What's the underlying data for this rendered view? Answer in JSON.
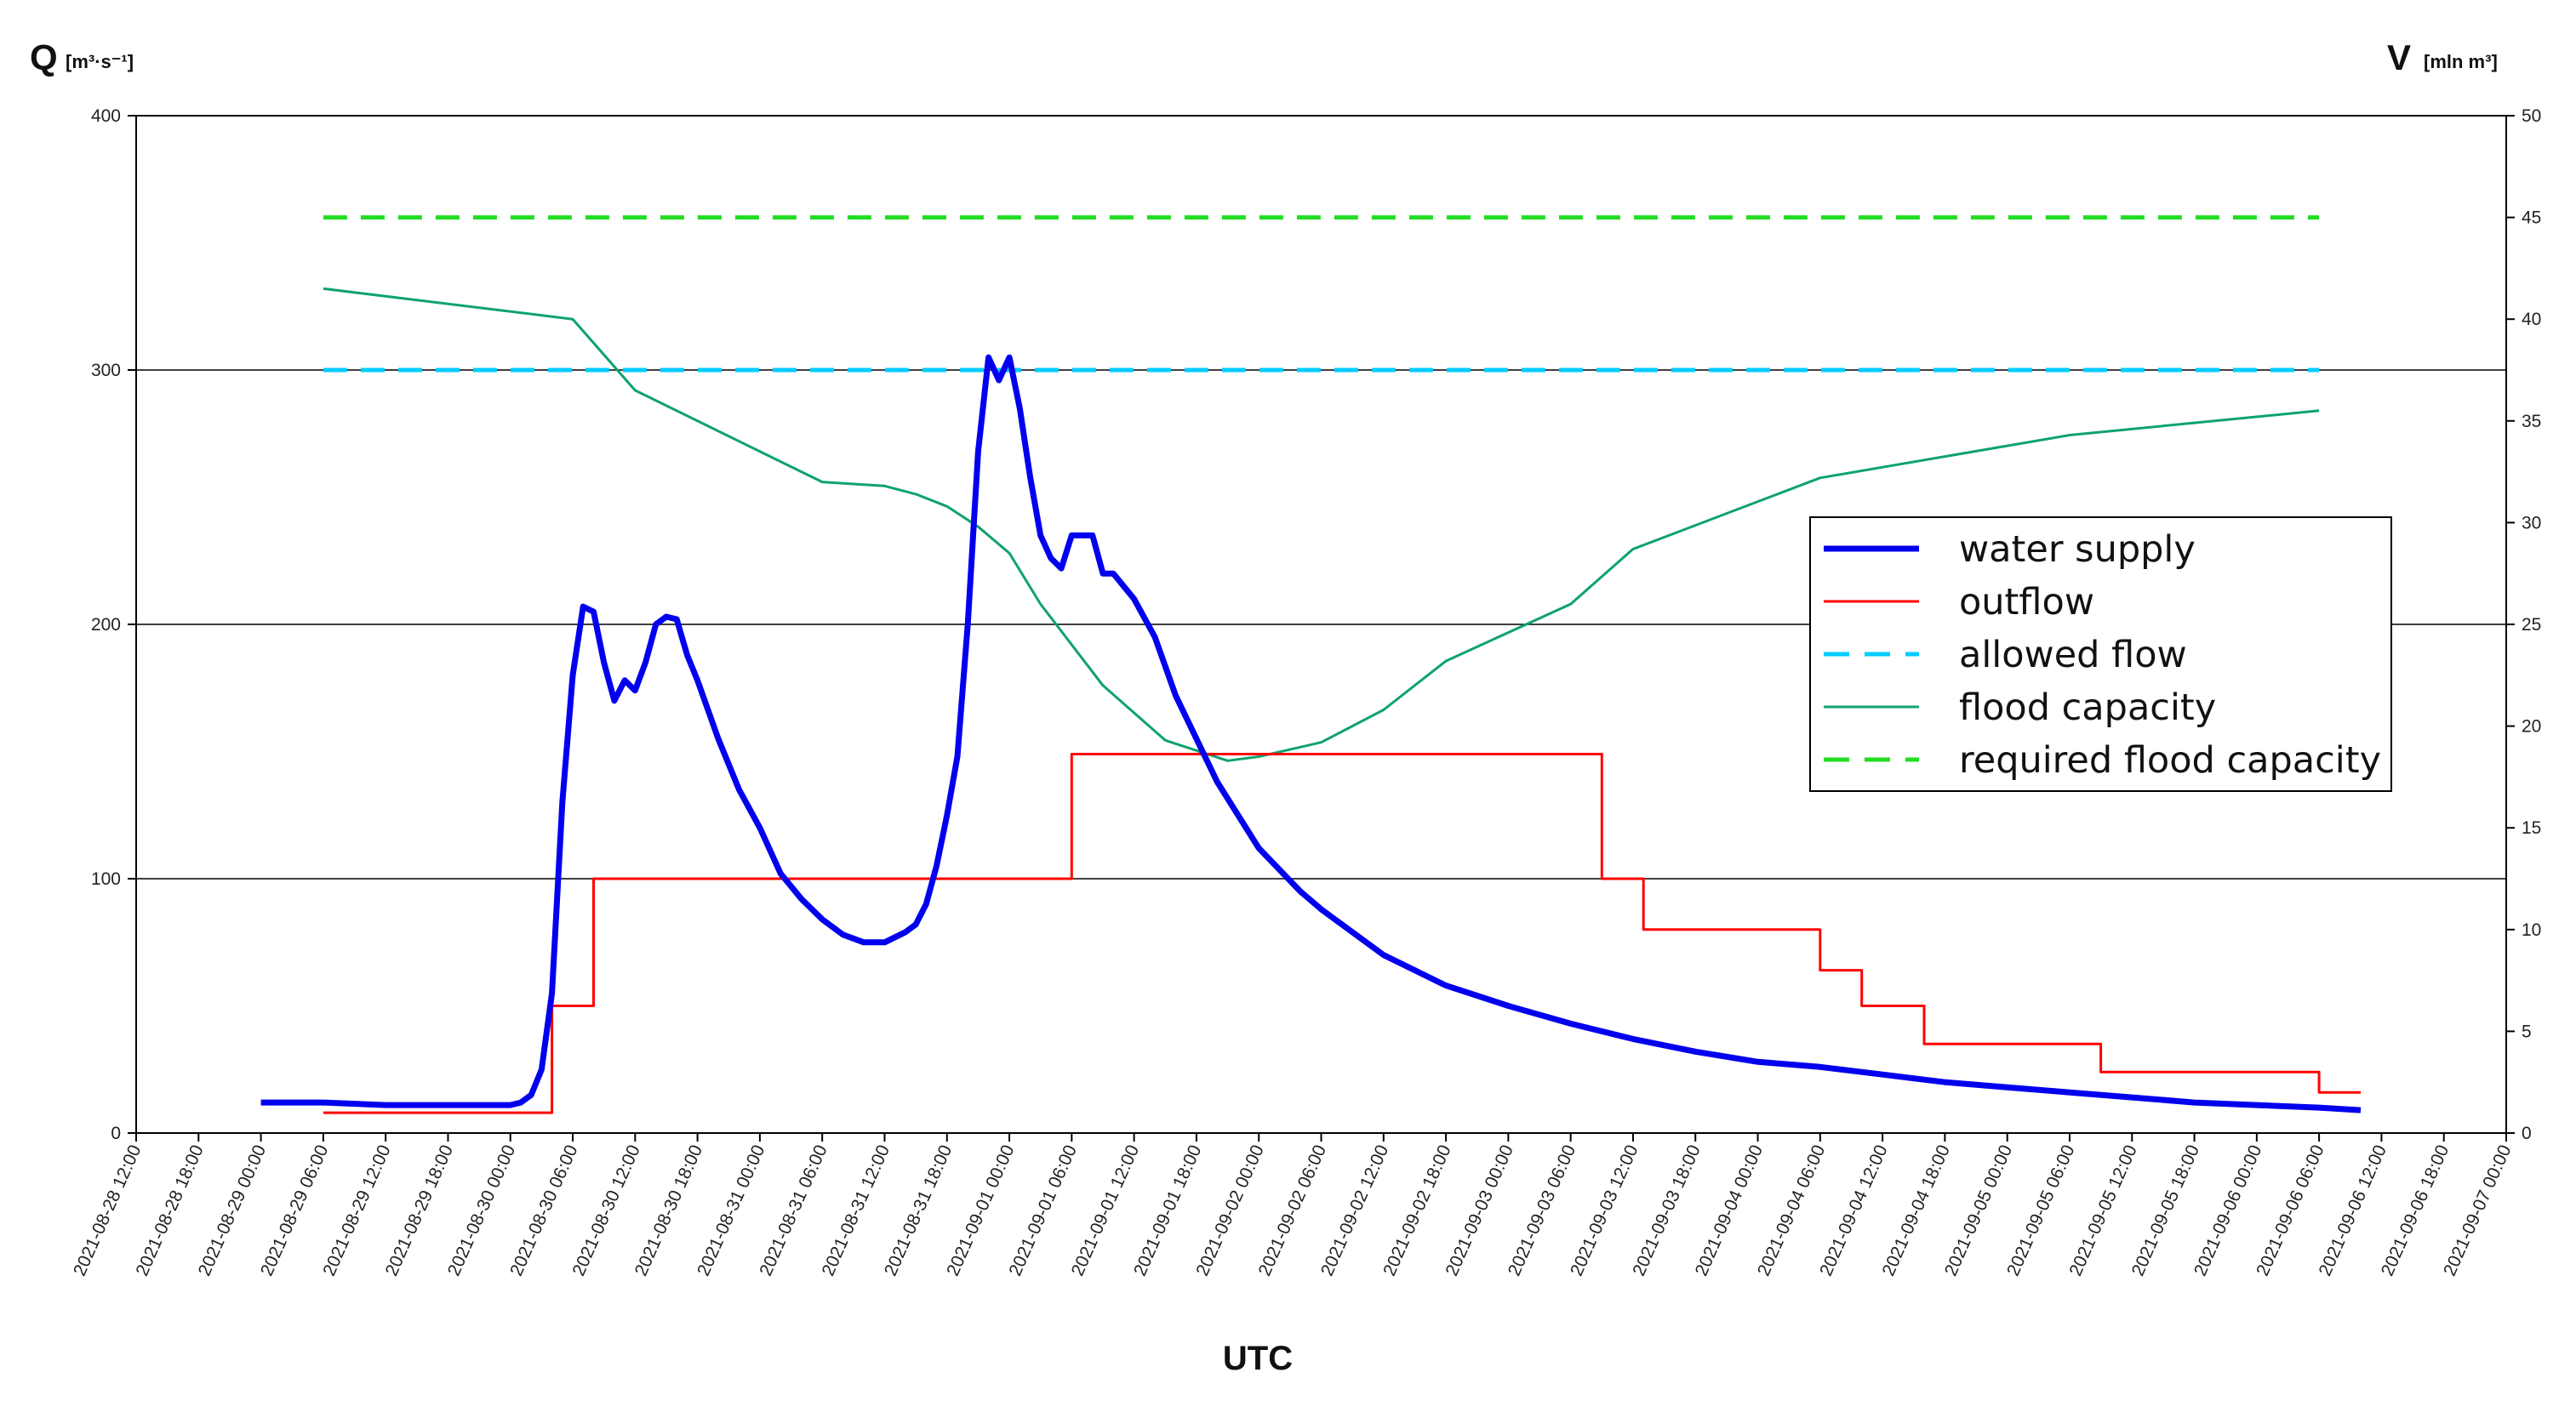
{
  "chart_data": {
    "type": "line",
    "title": "",
    "xlabel": "UTC",
    "ylabel_left": {
      "main": "Q",
      "unit": "[m³·s⁻¹]"
    },
    "ylabel_right": {
      "main": "V",
      "unit": "[mln  m³]"
    },
    "y_left_range": [
      0,
      400
    ],
    "y_left_ticks": [
      "0",
      "100",
      "200",
      "300",
      "400"
    ],
    "y_right_range": [
      0,
      50
    ],
    "y_right_ticks": [
      "0",
      "5",
      "10",
      "15",
      "20",
      "25",
      "30",
      "35",
      "40",
      "45",
      "50"
    ],
    "x_range": [
      "2021-08-28 12:00",
      "2021-09-07 00:00"
    ],
    "x_ticks": [
      "2021-08-28 12:00",
      "2021-08-28 18:00",
      "2021-08-29 00:00",
      "2021-08-29 06:00",
      "2021-08-29 12:00",
      "2021-08-29 18:00",
      "2021-08-30 00:00",
      "2021-08-30 06:00",
      "2021-08-30 12:00",
      "2021-08-30 18:00",
      "2021-08-31 00:00",
      "2021-08-31 06:00",
      "2021-08-31 12:00",
      "2021-08-31 18:00",
      "2021-09-01 00:00",
      "2021-09-01 06:00",
      "2021-09-01 12:00",
      "2021-09-01 18:00",
      "2021-09-02 00:00",
      "2021-09-02 06:00",
      "2021-09-02 12:00",
      "2021-09-02 18:00",
      "2021-09-03 00:00",
      "2021-09-03 06:00",
      "2021-09-03 12:00",
      "2021-09-03 18:00",
      "2021-09-04 00:00",
      "2021-09-04 06:00",
      "2021-09-04 12:00",
      "2021-09-04 18:00",
      "2021-09-05 00:00",
      "2021-09-05 06:00",
      "2021-09-05 12:00",
      "2021-09-05 18:00",
      "2021-09-06 00:00",
      "2021-09-06 06:00",
      "2021-09-06 12:00",
      "2021-09-06 18:00",
      "2021-09-07 00:00"
    ],
    "grid": {
      "horizontal": true,
      "vertical": false
    },
    "legend_position": "center-right",
    "series": [
      {
        "name": "water supply",
        "axis": "left",
        "color": "#0000ee",
        "style": "solid-thick",
        "points": [
          [
            "2021-08-29 00:00",
            12
          ],
          [
            "2021-08-29 06:00",
            12
          ],
          [
            "2021-08-29 12:00",
            11
          ],
          [
            "2021-08-29 18:00",
            11
          ],
          [
            "2021-08-30 00:00",
            11
          ],
          [
            "2021-08-30 01:00",
            12
          ],
          [
            "2021-08-30 02:00",
            15
          ],
          [
            "2021-08-30 03:00",
            25
          ],
          [
            "2021-08-30 04:00",
            55
          ],
          [
            "2021-08-30 05:00",
            130
          ],
          [
            "2021-08-30 06:00",
            180
          ],
          [
            "2021-08-30 07:00",
            207
          ],
          [
            "2021-08-30 08:00",
            205
          ],
          [
            "2021-08-30 09:00",
            185
          ],
          [
            "2021-08-30 10:00",
            170
          ],
          [
            "2021-08-30 11:00",
            178
          ],
          [
            "2021-08-30 12:00",
            174
          ],
          [
            "2021-08-30 13:00",
            185
          ],
          [
            "2021-08-30 14:00",
            200
          ],
          [
            "2021-08-30 15:00",
            203
          ],
          [
            "2021-08-30 16:00",
            202
          ],
          [
            "2021-08-30 17:00",
            188
          ],
          [
            "2021-08-30 18:00",
            178
          ],
          [
            "2021-08-30 20:00",
            155
          ],
          [
            "2021-08-30 22:00",
            135
          ],
          [
            "2021-08-31 00:00",
            120
          ],
          [
            "2021-08-31 02:00",
            102
          ],
          [
            "2021-08-31 04:00",
            92
          ],
          [
            "2021-08-31 06:00",
            84
          ],
          [
            "2021-08-31 08:00",
            78
          ],
          [
            "2021-08-31 10:00",
            75
          ],
          [
            "2021-08-31 12:00",
            75
          ],
          [
            "2021-08-31 14:00",
            79
          ],
          [
            "2021-08-31 15:00",
            82
          ],
          [
            "2021-08-31 16:00",
            90
          ],
          [
            "2021-08-31 17:00",
            105
          ],
          [
            "2021-08-31 18:00",
            125
          ],
          [
            "2021-08-31 19:00",
            148
          ],
          [
            "2021-08-31 20:00",
            200
          ],
          [
            "2021-08-31 21:00",
            268
          ],
          [
            "2021-08-31 22:00",
            305
          ],
          [
            "2021-08-31 23:00",
            296
          ],
          [
            "2021-09-01 00:00",
            305
          ],
          [
            "2021-09-01 01:00",
            285
          ],
          [
            "2021-09-01 02:00",
            258
          ],
          [
            "2021-09-01 03:00",
            235
          ],
          [
            "2021-09-01 04:00",
            226
          ],
          [
            "2021-09-01 05:00",
            222
          ],
          [
            "2021-09-01 06:00",
            235
          ],
          [
            "2021-09-01 08:00",
            235
          ],
          [
            "2021-09-01 09:00",
            220
          ],
          [
            "2021-09-01 10:00",
            220
          ],
          [
            "2021-09-01 11:00",
            215
          ],
          [
            "2021-09-01 12:00",
            210
          ],
          [
            "2021-09-01 14:00",
            195
          ],
          [
            "2021-09-01 16:00",
            172
          ],
          [
            "2021-09-01 18:00",
            155
          ],
          [
            "2021-09-01 20:00",
            138
          ],
          [
            "2021-09-02 00:00",
            112
          ],
          [
            "2021-09-02 04:00",
            95
          ],
          [
            "2021-09-02 06:00",
            88
          ],
          [
            "2021-09-02 12:00",
            70
          ],
          [
            "2021-09-02 18:00",
            58
          ],
          [
            "2021-09-03 00:00",
            50
          ],
          [
            "2021-09-03 06:00",
            43
          ],
          [
            "2021-09-03 12:00",
            37
          ],
          [
            "2021-09-03 18:00",
            32
          ],
          [
            "2021-09-04 00:00",
            28
          ],
          [
            "2021-09-04 06:00",
            26
          ],
          [
            "2021-09-04 12:00",
            23
          ],
          [
            "2021-09-04 18:00",
            20
          ],
          [
            "2021-09-05 00:00",
            18
          ],
          [
            "2021-09-05 06:00",
            16
          ],
          [
            "2021-09-05 12:00",
            14
          ],
          [
            "2021-09-05 18:00",
            12
          ],
          [
            "2021-09-06 00:00",
            11
          ],
          [
            "2021-09-06 06:00",
            10
          ],
          [
            "2021-09-06 10:00",
            9
          ]
        ]
      },
      {
        "name": "outflow",
        "axis": "left",
        "color": "#ff0000",
        "style": "solid-thin",
        "points": [
          [
            "2021-08-29 06:00",
            8
          ],
          [
            "2021-08-30 04:00",
            8
          ],
          [
            "2021-08-30 04:00",
            50
          ],
          [
            "2021-08-30 08:00",
            50
          ],
          [
            "2021-08-30 08:00",
            100
          ],
          [
            "2021-09-01 06:00",
            100
          ],
          [
            "2021-09-01 06:00",
            149
          ],
          [
            "2021-09-03 09:00",
            149
          ],
          [
            "2021-09-03 09:00",
            100
          ],
          [
            "2021-09-03 13:00",
            100
          ],
          [
            "2021-09-03 13:00",
            80
          ],
          [
            "2021-09-04 06:00",
            80
          ],
          [
            "2021-09-04 06:00",
            64
          ],
          [
            "2021-09-04 10:00",
            64
          ],
          [
            "2021-09-04 10:00",
            50
          ],
          [
            "2021-09-04 16:00",
            50
          ],
          [
            "2021-09-04 16:00",
            35
          ],
          [
            "2021-09-05 09:00",
            35
          ],
          [
            "2021-09-05 09:00",
            24
          ],
          [
            "2021-09-06 06:00",
            24
          ],
          [
            "2021-09-06 06:00",
            16
          ],
          [
            "2021-09-06 10:00",
            16
          ]
        ]
      },
      {
        "name": "allowed flow",
        "axis": "left",
        "color": "#00ccff",
        "style": "dashed",
        "points": [
          [
            "2021-08-29 06:00",
            300
          ],
          [
            "2021-09-06 06:00",
            300
          ]
        ]
      },
      {
        "name": "flood capacity",
        "axis": "right",
        "color": "#0ea36b",
        "style": "solid-thin",
        "points": [
          [
            "2021-08-29 06:00",
            41.5
          ],
          [
            "2021-08-30 06:00",
            40
          ],
          [
            "2021-08-30 12:00",
            36.5
          ],
          [
            "2021-08-31 06:00",
            32
          ],
          [
            "2021-08-31 12:00",
            31.8
          ],
          [
            "2021-08-31 15:00",
            31.4
          ],
          [
            "2021-08-31 18:00",
            30.8
          ],
          [
            "2021-08-31 21:00",
            29.8
          ],
          [
            "2021-09-01 00:00",
            28.5
          ],
          [
            "2021-09-01 03:00",
            26
          ],
          [
            "2021-09-01 09:00",
            22
          ],
          [
            "2021-09-01 15:00",
            19.3
          ],
          [
            "2021-09-01 21:00",
            18.3
          ],
          [
            "2021-09-02 00:00",
            18.5
          ],
          [
            "2021-09-02 06:00",
            19.2
          ],
          [
            "2021-09-02 12:00",
            20.8
          ],
          [
            "2021-09-02 18:00",
            23.2
          ],
          [
            "2021-09-03 06:00",
            26
          ],
          [
            "2021-09-03 12:00",
            28.7
          ],
          [
            "2021-09-04 06:00",
            32.2
          ],
          [
            "2021-09-05 06:00",
            34.3
          ],
          [
            "2021-09-06 06:00",
            35.5
          ]
        ]
      },
      {
        "name": "required flood capacity",
        "axis": "right",
        "color": "#22dd22",
        "style": "dashed",
        "points": [
          [
            "2021-08-29 06:00",
            45
          ],
          [
            "2021-09-06 06:00",
            45
          ]
        ]
      }
    ]
  }
}
